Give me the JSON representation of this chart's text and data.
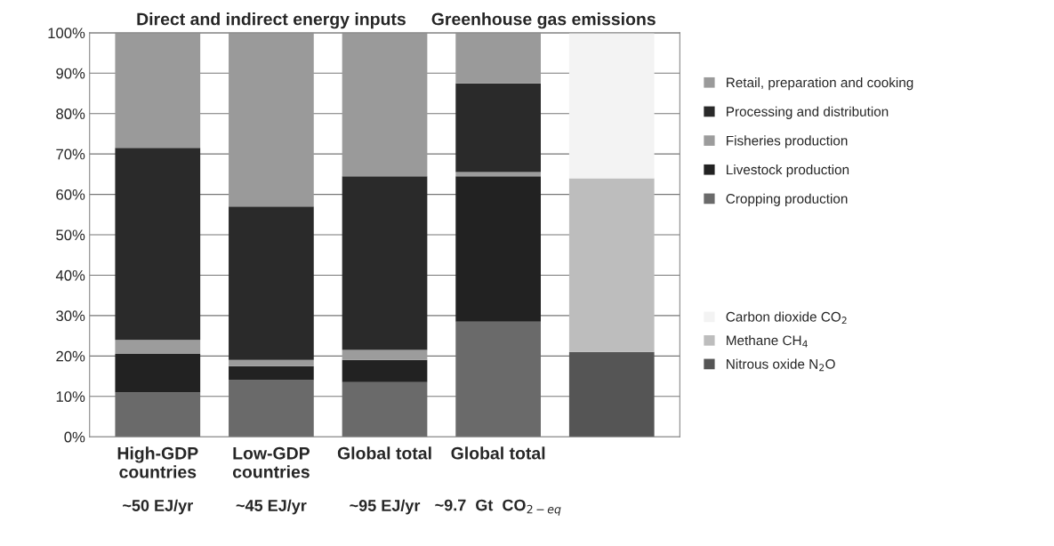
{
  "chart_data": {
    "type": "bar",
    "stacked": true,
    "categories": [
      "High-GDP\ncountries",
      "Low-GDP\ncountries",
      "Global total",
      "Global total",
      null
    ],
    "series": [
      {
        "name": "Cropping production",
        "color": "#6a6a6a",
        "values": [
          11,
          14,
          13.5,
          28.5,
          null
        ]
      },
      {
        "name": "Livestock production",
        "color": "#222222",
        "values": [
          9.5,
          3.5,
          5.5,
          36,
          null
        ]
      },
      {
        "name": "Fisheries production",
        "color": "#9c9c9c",
        "values": [
          3.5,
          1.5,
          2.5,
          1,
          null
        ]
      },
      {
        "name": "Processing and distribution",
        "color": "#2a2a2a",
        "values": [
          47.5,
          38,
          43,
          22,
          null
        ]
      },
      {
        "name": "Retail, preparation and cooking",
        "color": "#9a9a9a",
        "values": [
          28.5,
          43,
          35.5,
          12.5,
          null
        ]
      },
      {
        "name": "Nitrous oxide N$_{2}$O",
        "color": "#555555",
        "values": [
          null,
          null,
          null,
          null,
          21
        ]
      },
      {
        "name": "Methane CH$_{4}$",
        "color": "#bdbdbd",
        "values": [
          null,
          null,
          null,
          null,
          43
        ]
      },
      {
        "name": "Carbon dioxide CO$_{2}$",
        "color": "#f3f3f3",
        "values": [
          null,
          null,
          null,
          null,
          36
        ]
      }
    ],
    "ylim": [
      0,
      100
    ],
    "yticks": [
      {
        "value": 0,
        "label": "0%"
      },
      {
        "value": 10,
        "label": "10%"
      },
      {
        "value": 20,
        "label": "20%"
      },
      {
        "value": 30,
        "label": "30%"
      },
      {
        "value": 40,
        "label": "40%"
      },
      {
        "value": 50,
        "label": "50%"
      },
      {
        "value": 60,
        "label": "60%"
      },
      {
        "value": 70,
        "label": "70%"
      },
      {
        "value": 80,
        "label": "80%"
      },
      {
        "value": 90,
        "label": "90%"
      },
      {
        "value": 100,
        "label": "100%"
      }
    ],
    "grid": "y",
    "legend": "right",
    "annotations": [
      "Direct and indirect energy inputs",
      "Greenhouse gas emissions",
      "~50 EJ/yr",
      "~45 EJ/yr",
      "~95 EJ/yr",
      "~9.7  Gt  CO$_{2−eq}$"
    ]
  }
}
